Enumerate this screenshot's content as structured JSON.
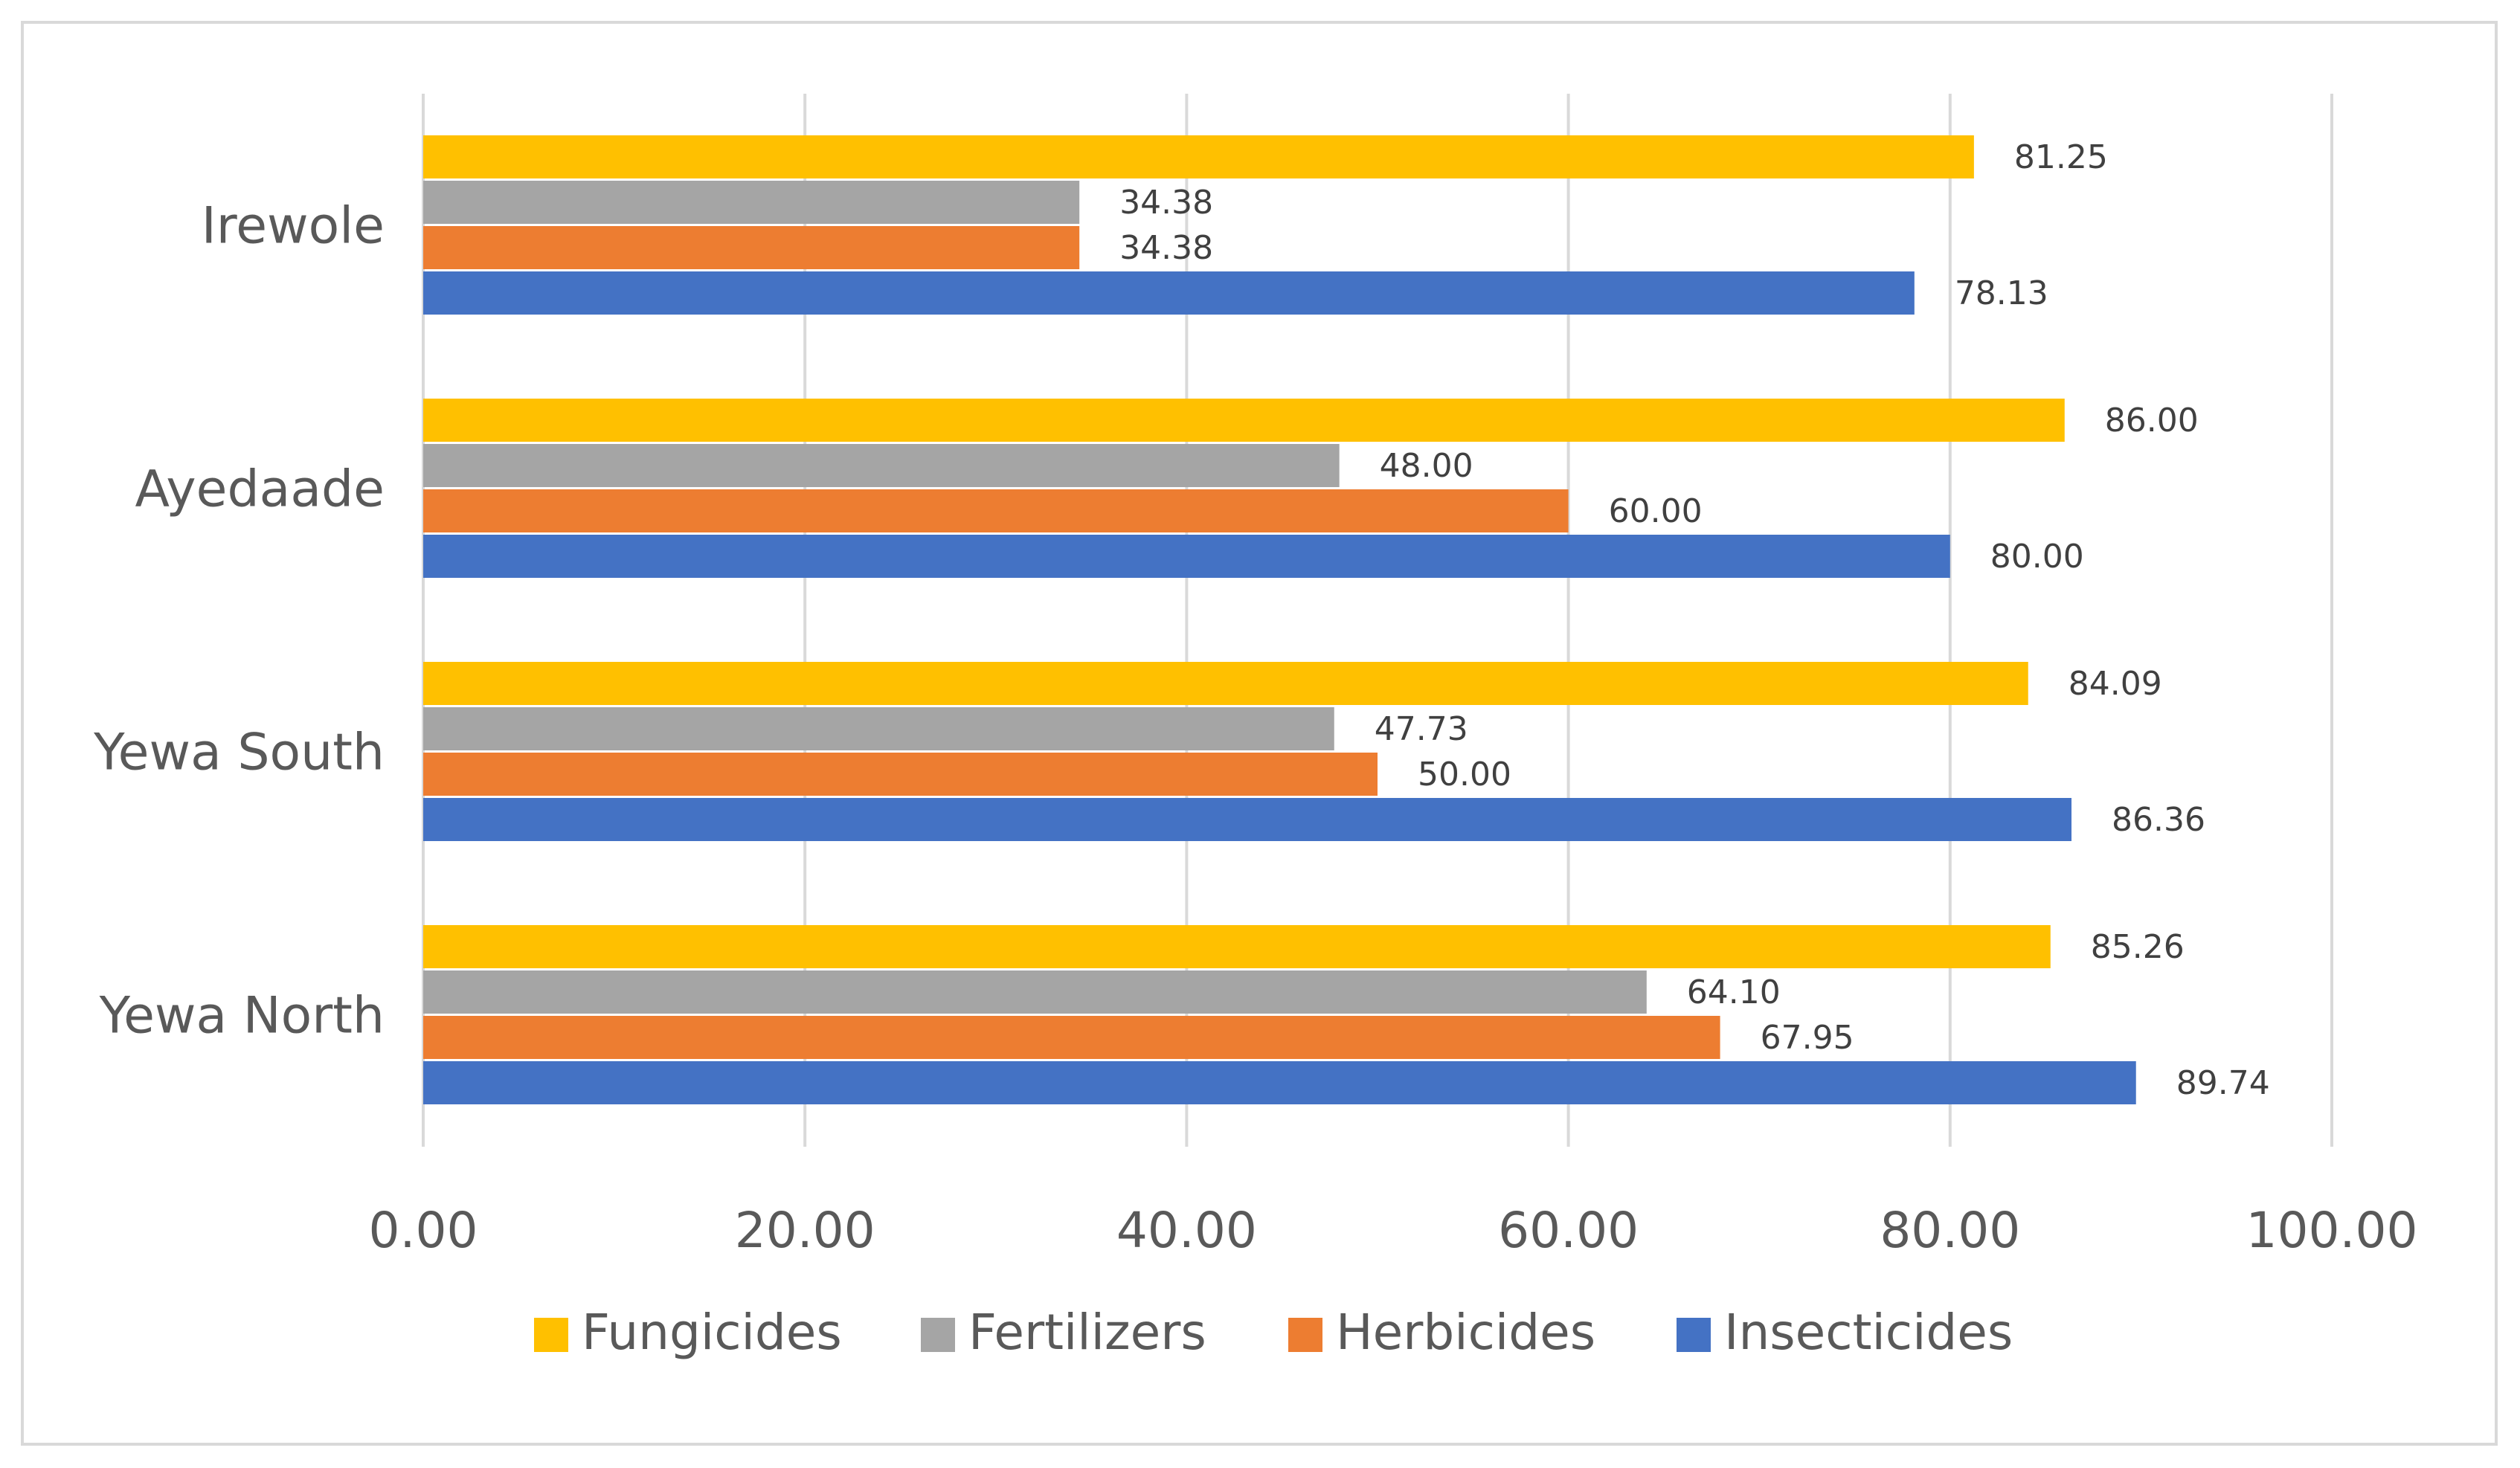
{
  "chart_data": {
    "type": "bar",
    "orientation": "horizontal",
    "title": "",
    "xlabel": "",
    "ylabel": "",
    "categories": [
      "Yewa North",
      "Yewa South",
      "Ayedaade",
      "Irewole"
    ],
    "series": [
      {
        "name": "Insecticides",
        "color": "#4472C4",
        "values": [
          89.74,
          86.36,
          80.0,
          78.13
        ],
        "labels": [
          "89.74",
          "86.36",
          "80.00",
          "78.13"
        ]
      },
      {
        "name": "Herbicides",
        "color": "#ED7D31",
        "values": [
          67.95,
          50.0,
          60.0,
          34.38
        ],
        "labels": [
          "67.95",
          "50.00",
          "60.00",
          "34.38"
        ]
      },
      {
        "name": "Fertilizers",
        "color": "#A5A5A5",
        "values": [
          64.1,
          47.73,
          48.0,
          34.38
        ],
        "labels": [
          "64.10",
          "47.73",
          "48.00",
          "34.38"
        ]
      },
      {
        "name": "Fungicides",
        "color": "#FFC000",
        "values": [
          85.26,
          84.09,
          86.0,
          81.25
        ],
        "labels": [
          "85.26",
          "84.09",
          "86.00",
          "81.25"
        ]
      }
    ],
    "xlim": [
      0,
      100
    ],
    "ticks": [
      0,
      20,
      40,
      60,
      80,
      100
    ],
    "tick_labels": [
      "0.00",
      "20.00",
      "40.00",
      "60.00",
      "80.00",
      "100.00"
    ],
    "legend": {
      "position": "bottom",
      "order": [
        "Fungicides",
        "Fertilizers",
        "Herbicides",
        "Insecticides"
      ]
    },
    "grid": true
  }
}
